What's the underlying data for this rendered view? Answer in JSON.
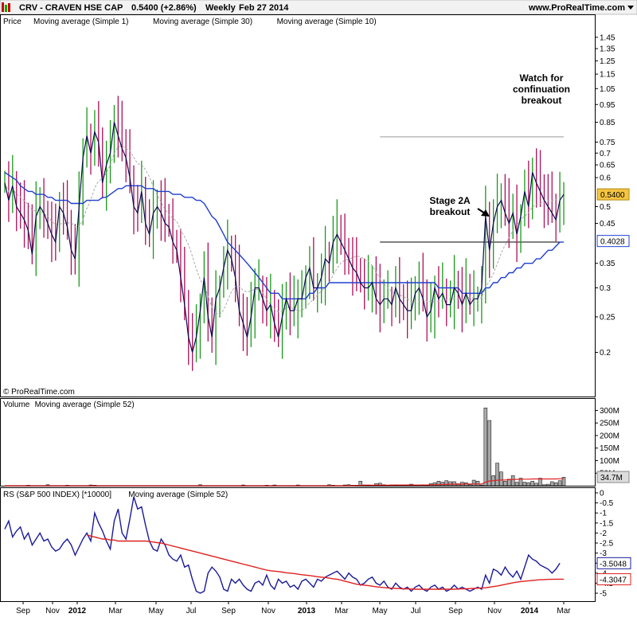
{
  "header": {
    "symbol_title": "CRV - CRAVEN HSE CAP",
    "price_change": "0.5400 (+2.86%)",
    "period": "Weekly",
    "date": "Feb 27 2014",
    "website": "www.ProRealTime.com"
  },
  "copyright": "© ProRealTime.com",
  "colors": {
    "up": "#1a9a1a",
    "down": "#b0105a",
    "ma1": "#0a0a50",
    "ma30": "#1f3fd0",
    "ma10": "#aaaaaa",
    "ma52_red": "#e02020",
    "rs_line": "#1a1a9a",
    "axis": "#000000"
  },
  "annotations": {
    "watch_line1": "Watch for",
    "watch_line2": "confinuation",
    "watch_line3": "breakout",
    "stage_line1": "Stage 2A",
    "stage_line2": "breakout"
  },
  "chart_data": [
    {
      "type": "candlestick",
      "panel": "price",
      "legend": [
        "Price",
        "Moving average (Simple 1)",
        "Moving average (Simple 30)",
        "Moving average (Simple 10)"
      ],
      "y_scale": "log",
      "ylim": [
        0.17,
        1.5
      ],
      "y_ticks": [
        "1.45",
        "1.35",
        "1.25",
        "1.15",
        "1.05",
        "0.95",
        "0.85",
        "0.75",
        "0.7",
        "0.65",
        "0.6",
        "0.5",
        "0.45",
        "0.35",
        "0.3",
        "0.25",
        "0.2"
      ],
      "current_price_label": "0.5400",
      "ma30_label": "0.4028",
      "close": [
        0.58,
        0.52,
        0.57,
        0.5,
        0.48,
        0.46,
        0.43,
        0.37,
        0.47,
        0.5,
        0.48,
        0.45,
        0.42,
        0.4,
        0.5,
        0.48,
        0.44,
        0.38,
        0.36,
        0.5,
        0.68,
        0.78,
        0.7,
        0.8,
        0.75,
        0.58,
        0.65,
        0.7,
        0.85,
        0.78,
        0.72,
        0.68,
        0.6,
        0.5,
        0.48,
        0.55,
        0.45,
        0.42,
        0.48,
        0.5,
        0.48,
        0.45,
        0.44,
        0.4,
        0.38,
        0.32,
        0.27,
        0.22,
        0.2,
        0.22,
        0.26,
        0.32,
        0.25,
        0.22,
        0.28,
        0.3,
        0.34,
        0.38,
        0.36,
        0.32,
        0.26,
        0.24,
        0.22,
        0.25,
        0.3,
        0.3,
        0.28,
        0.26,
        0.27,
        0.24,
        0.22,
        0.25,
        0.28,
        0.26,
        0.26,
        0.28,
        0.28,
        0.32,
        0.34,
        0.3,
        0.3,
        0.32,
        0.36,
        0.35,
        0.4,
        0.42,
        0.4,
        0.38,
        0.36,
        0.34,
        0.33,
        0.31,
        0.3,
        0.3,
        0.31,
        0.28,
        0.27,
        0.28,
        0.28,
        0.27,
        0.3,
        0.28,
        0.27,
        0.26,
        0.26,
        0.29,
        0.3,
        0.28,
        0.25,
        0.26,
        0.3,
        0.28,
        0.29,
        0.27,
        0.27,
        0.3,
        0.29,
        0.27,
        0.29,
        0.27,
        0.28,
        0.28,
        0.3,
        0.47,
        0.38,
        0.45,
        0.5,
        0.52,
        0.48,
        0.45,
        0.48,
        0.42,
        0.47,
        0.55,
        0.5,
        0.62,
        0.58,
        0.55,
        0.52,
        0.5,
        0.48,
        0.46,
        0.52,
        0.54
      ],
      "ma30": [
        0.62,
        0.61,
        0.6,
        0.59,
        0.57,
        0.56,
        0.55,
        0.55,
        0.54,
        0.54,
        0.54,
        0.53,
        0.53,
        0.52,
        0.52,
        0.52,
        0.52,
        0.51,
        0.51,
        0.51,
        0.51,
        0.52,
        0.52,
        0.52,
        0.52,
        0.53,
        0.53,
        0.54,
        0.55,
        0.56,
        0.56,
        0.57,
        0.57,
        0.57,
        0.57,
        0.57,
        0.56,
        0.56,
        0.56,
        0.55,
        0.55,
        0.55,
        0.55,
        0.54,
        0.54,
        0.54,
        0.53,
        0.53,
        0.53,
        0.52,
        0.52,
        0.51,
        0.49,
        0.47,
        0.46,
        0.44,
        0.42,
        0.4,
        0.39,
        0.38,
        0.37,
        0.36,
        0.35,
        0.34,
        0.33,
        0.32,
        0.31,
        0.3,
        0.29,
        0.29,
        0.29,
        0.28,
        0.28,
        0.28,
        0.28,
        0.28,
        0.28,
        0.28,
        0.29,
        0.29,
        0.3,
        0.3,
        0.3,
        0.31,
        0.31,
        0.31,
        0.31,
        0.31,
        0.31,
        0.31,
        0.31,
        0.31,
        0.31,
        0.31,
        0.31,
        0.31,
        0.31,
        0.31,
        0.31,
        0.31,
        0.31,
        0.31,
        0.31,
        0.31,
        0.31,
        0.31,
        0.31,
        0.31,
        0.31,
        0.31,
        0.31,
        0.3,
        0.3,
        0.3,
        0.3,
        0.3,
        0.3,
        0.29,
        0.29,
        0.29,
        0.29,
        0.29,
        0.29,
        0.3,
        0.3,
        0.31,
        0.31,
        0.32,
        0.32,
        0.33,
        0.33,
        0.34,
        0.34,
        0.35,
        0.35,
        0.35,
        0.36,
        0.36,
        0.37,
        0.38,
        0.38,
        0.39,
        0.4,
        0.4
      ]
    },
    {
      "type": "bar",
      "panel": "volume",
      "legend": [
        "Volume",
        "Moving average (Simple 52)"
      ],
      "y_ticks": [
        "300M",
        "250M",
        "200M",
        "150M",
        "100M",
        "50M"
      ],
      "last_label": "34.7M",
      "ylim_millions": [
        0,
        330
      ],
      "volume_millions": [
        0,
        0,
        0,
        0,
        0,
        0,
        2,
        0,
        0,
        0,
        0,
        4,
        0,
        0,
        0,
        0,
        2,
        0,
        0,
        0,
        0,
        0,
        3,
        2,
        0,
        0,
        0,
        0,
        0,
        0,
        0,
        0,
        0,
        0,
        0,
        0,
        0,
        0,
        0,
        0,
        0,
        0,
        0,
        0,
        0,
        0,
        0,
        0,
        0,
        0,
        4,
        0,
        0,
        0,
        0,
        0,
        0,
        0,
        0,
        0,
        0,
        3,
        0,
        0,
        0,
        0,
        0,
        2,
        0,
        3,
        0,
        0,
        0,
        0,
        0,
        3,
        0,
        0,
        0,
        0,
        0,
        0,
        0,
        4,
        2,
        0,
        0,
        3,
        4,
        2,
        2,
        18,
        3,
        3,
        2,
        8,
        10,
        4,
        2,
        3,
        2,
        3,
        2,
        4,
        6,
        3,
        3,
        4,
        2,
        8,
        12,
        18,
        14,
        20,
        16,
        16,
        8,
        14,
        12,
        4,
        22,
        18,
        3,
        310,
        260,
        40,
        90,
        55,
        18,
        26,
        40,
        14,
        30,
        14,
        12,
        18,
        10,
        30,
        4,
        6,
        16,
        12,
        20,
        34
      ],
      "ma52_millions": [
        0,
        0,
        0,
        0,
        0,
        0,
        0,
        0,
        0,
        0,
        0,
        0,
        0,
        0,
        0,
        0,
        0,
        0,
        0,
        0,
        0,
        0,
        0,
        0,
        0,
        0,
        0,
        0,
        0,
        0,
        0,
        0,
        0,
        0,
        0,
        0,
        0,
        0,
        0,
        0,
        0,
        0,
        0,
        0,
        0,
        0,
        0,
        0,
        0,
        0,
        0,
        0,
        0,
        0,
        0,
        0,
        0,
        0,
        0,
        0,
        0,
        0,
        0,
        0,
        0,
        0,
        0,
        0,
        0,
        0,
        0,
        0,
        0,
        0,
        0,
        0,
        0,
        0,
        0,
        0,
        0,
        0,
        0,
        0,
        0,
        0,
        0,
        0,
        0,
        0,
        1,
        1,
        2,
        2,
        2,
        2,
        2,
        2,
        2,
        3,
        3,
        3,
        3,
        3,
        3,
        3,
        3,
        3,
        3,
        4,
        4,
        4,
        5,
        5,
        6,
        6,
        6,
        6,
        7,
        7,
        7,
        7,
        7,
        14,
        19,
        20,
        22,
        23,
        23,
        24,
        25,
        25,
        26,
        26,
        26,
        27,
        27,
        27,
        27,
        27,
        27,
        27,
        28,
        28
      ]
    },
    {
      "type": "line",
      "panel": "relative_strength",
      "legend": [
        "RS (S&P 500 INDEX) [*10000]",
        "Moving average (Simple 52)"
      ],
      "ylim": [
        -5,
        0
      ],
      "y_ticks": [
        "0",
        "-0.5",
        "-1",
        "-1.5",
        "-2",
        "-2.5",
        "-3",
        "-3.5",
        "-4",
        "-4.5",
        "-5"
      ],
      "rs_label": "-3.5048",
      "ma_label": "-4.3047",
      "x_ticks": [
        "Sep",
        "Nov",
        "2012",
        "Mar",
        "May",
        "Jul",
        "Sep",
        "Nov",
        "2013",
        "Mar",
        "May",
        "Jul",
        "Sep",
        "Nov",
        "2014",
        "Mar"
      ],
      "rs": [
        -1.8,
        -1.4,
        -2.2,
        -1.9,
        -1.7,
        -2.3,
        -2.0,
        -2.6,
        -2.3,
        -2.0,
        -2.4,
        -2.3,
        -2.7,
        -2.9,
        -2.8,
        -2.5,
        -2.3,
        -2.6,
        -3.1,
        -2.7,
        -2.3,
        -2.0,
        -2.4,
        -1.0,
        -1.5,
        -1.9,
        -2.4,
        -2.8,
        -1.4,
        -0.8,
        -2.0,
        -2.3,
        -1.3,
        -0.2,
        -0.8,
        -0.7,
        -1.6,
        -2.4,
        -2.8,
        -2.9,
        -2.3,
        -2.6,
        -3.1,
        -3.3,
        -3.4,
        -3.1,
        -3.7,
        -3.6,
        -4.3,
        -4.9,
        -5.0,
        -4.9,
        -4.0,
        -3.7,
        -3.9,
        -4.2,
        -4.8,
        -4.9,
        -4.3,
        -4.5,
        -4.3,
        -4.6,
        -4.8,
        -4.9,
        -4.5,
        -4.4,
        -4.6,
        -4.1,
        -4.6,
        -4.8,
        -4.3,
        -4.5,
        -4.4,
        -4.7,
        -4.6,
        -4.8,
        -4.4,
        -4.3,
        -4.5,
        -4.7,
        -4.3,
        -4.4,
        -4.2,
        -4.1,
        -4.0,
        -3.9,
        -4.1,
        -4.3,
        -4.0,
        -4.2,
        -4.3,
        -4.6,
        -4.5,
        -4.3,
        -4.2,
        -4.5,
        -4.6,
        -4.4,
        -4.7,
        -4.8,
        -4.5,
        -4.7,
        -4.8,
        -4.7,
        -4.9,
        -4.7,
        -4.6,
        -4.8,
        -4.9,
        -4.7,
        -4.6,
        -4.8,
        -4.7,
        -4.9,
        -4.8,
        -4.6,
        -4.8,
        -4.7,
        -4.8,
        -4.9,
        -4.8,
        -4.7,
        -4.8,
        -4.1,
        -4.5,
        -3.8,
        -3.9,
        -4.1,
        -3.7,
        -4.0,
        -4.2,
        -3.9,
        -4.3,
        -3.7,
        -3.1,
        -3.3,
        -3.4,
        -3.6,
        -3.7,
        -3.8,
        -4.0,
        -3.8,
        -3.5
      ],
      "ma52": [
        null,
        null,
        null,
        null,
        null,
        null,
        null,
        null,
        null,
        null,
        null,
        null,
        null,
        null,
        null,
        null,
        null,
        null,
        null,
        null,
        null,
        -2.1,
        -2.15,
        -2.2,
        -2.25,
        -2.3,
        -2.3,
        -2.35,
        -2.35,
        -2.4,
        -2.4,
        -2.4,
        -2.4,
        -2.4,
        -2.4,
        -2.4,
        -2.4,
        -2.42,
        -2.45,
        -2.48,
        -2.5,
        -2.55,
        -2.6,
        -2.65,
        -2.7,
        -2.75,
        -2.8,
        -2.85,
        -2.9,
        -2.95,
        -3.0,
        -3.05,
        -3.1,
        -3.15,
        -3.2,
        -3.25,
        -3.3,
        -3.35,
        -3.4,
        -3.45,
        -3.5,
        -3.55,
        -3.6,
        -3.65,
        -3.7,
        -3.75,
        -3.8,
        -3.85,
        -3.88,
        -3.9,
        -3.92,
        -3.95,
        -3.98,
        -4.0,
        -4.02,
        -4.05,
        -4.08,
        -4.1,
        -4.12,
        -4.15,
        -4.18,
        -4.2,
        -4.22,
        -4.25,
        -4.28,
        -4.3,
        -4.35,
        -4.4,
        -4.45,
        -4.5,
        -4.55,
        -4.58,
        -4.6,
        -4.62,
        -4.65,
        -4.68,
        -4.7,
        -4.72,
        -4.74,
        -4.75,
        -4.76,
        -4.77,
        -4.78,
        -4.78,
        -4.79,
        -4.8,
        -4.8,
        -4.8,
        -4.8,
        -4.8,
        -4.8,
        -4.8,
        -4.8,
        -4.8,
        -4.8,
        -4.8,
        -4.79,
        -4.78,
        -4.78,
        -4.77,
        -4.76,
        -4.75,
        -4.74,
        -4.73,
        -4.7,
        -4.67,
        -4.64,
        -4.6,
        -4.56,
        -4.52,
        -4.48,
        -4.45,
        -4.42,
        -4.4,
        -4.38,
        -4.36,
        -4.34,
        -4.33,
        -4.32,
        -4.31,
        -4.31,
        -4.3,
        -4.3,
        -4.3
      ]
    }
  ]
}
